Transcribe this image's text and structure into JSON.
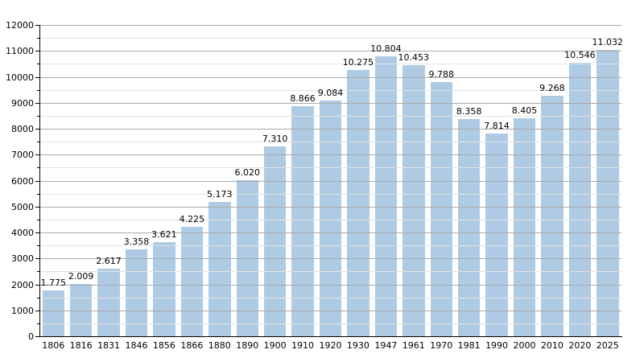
{
  "chart_data": {
    "type": "bar",
    "title": "",
    "xlabel": "",
    "ylabel": "",
    "categories": [
      "1806",
      "1816",
      "1831",
      "1846",
      "1856",
      "1866",
      "1880",
      "1890",
      "1900",
      "1910",
      "1920",
      "1930",
      "1947",
      "1961",
      "1970",
      "1981",
      "1990",
      "2000",
      "2010",
      "2020",
      "2025"
    ],
    "values": [
      1775,
      2009,
      2617,
      3358,
      3621,
      4225,
      5173,
      6020,
      7310,
      8866,
      9084,
      10275,
      10804,
      10453,
      9788,
      8358,
      7814,
      8405,
      9268,
      10546,
      11032
    ],
    "value_labels": [
      "1.775",
      "2.009",
      "2.617",
      "3.358",
      "3.621",
      "4.225",
      "5.173",
      "6.020",
      "7.310",
      "8.866",
      "9.084",
      "10.275",
      "10.804",
      "10.453",
      "9.788",
      "8.358",
      "7.814",
      "8.405",
      "9.268",
      "10.546",
      "11.032"
    ],
    "ylim": [
      0,
      12000
    ],
    "y_major_step": 1000,
    "y_minor_step": 500,
    "y_tick_labels": [
      "0",
      "1000",
      "2000",
      "3000",
      "4000",
      "5000",
      "6000",
      "7000",
      "8000",
      "9000",
      "10000",
      "11000",
      "12000"
    ],
    "grid": true,
    "legend": "none",
    "bar_color": "#afcbe3",
    "major_grid_color": "#aaaaaa",
    "minor_grid_color": "#e2e2e2",
    "axis_color": "#000000",
    "text_color": "#000000",
    "background_color": "#ffffff"
  }
}
